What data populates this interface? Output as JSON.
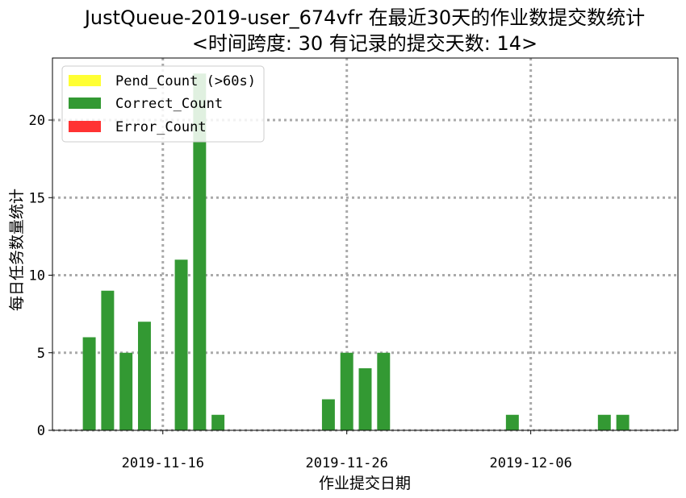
{
  "chart_data": {
    "type": "bar",
    "title_line1": "JustQueue-2019-user_674vfr 在最近30天的作业数提交数统计",
    "title_line2": "<时间跨度: 30  有记录的提交天数: 14>",
    "xlabel": "作业提交日期",
    "ylabel": "每日任务数量统计",
    "ylim": [
      0,
      24
    ],
    "yticks": [
      0,
      5,
      10,
      15,
      20
    ],
    "xlim": [
      "2019-11-10",
      "2019-12-14"
    ],
    "xticks": [
      "2019-11-16",
      "2019-11-26",
      "2019-12-06"
    ],
    "grid": true,
    "legend_position": "top-left",
    "categories": [
      "2019-11-12",
      "2019-11-13",
      "2019-11-14",
      "2019-11-15",
      "2019-11-17",
      "2019-11-18",
      "2019-11-19",
      "2019-11-25",
      "2019-11-26",
      "2019-11-27",
      "2019-11-28",
      "2019-12-05",
      "2019-12-10",
      "2019-12-11"
    ],
    "series": [
      {
        "name": "Pend_Count (>60s)",
        "color": "#ffff33",
        "values": [
          0,
          0,
          0,
          0,
          0,
          0,
          0,
          0,
          0,
          0,
          0,
          0,
          0,
          0
        ]
      },
      {
        "name": "Correct_Count",
        "color": "#339933",
        "values": [
          6,
          9,
          5,
          7,
          11,
          23,
          1,
          2,
          5,
          4,
          5,
          1,
          1,
          1
        ]
      },
      {
        "name": "Error_Count",
        "color": "#ff3333",
        "values": [
          0,
          0,
          0,
          0,
          0,
          0,
          0,
          0,
          0,
          0,
          0,
          0,
          0,
          0
        ]
      }
    ]
  }
}
